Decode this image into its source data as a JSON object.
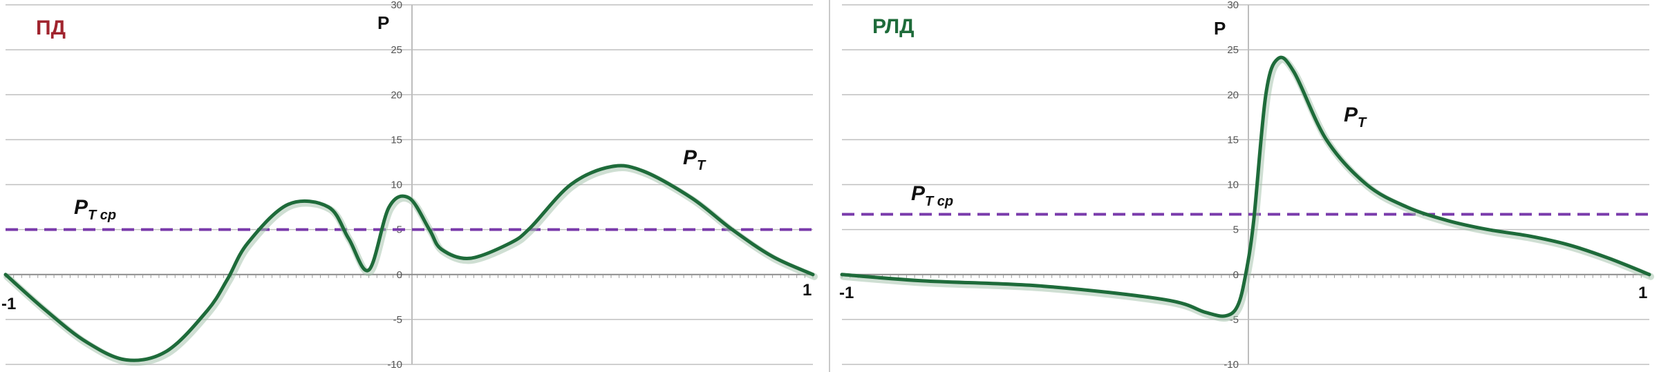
{
  "chart_data": [
    {
      "type": "line",
      "title": "ПД",
      "ylabel": "P",
      "ylim": [
        -10,
        30
      ],
      "yticks": [
        "-10",
        "-5",
        "0",
        "5",
        "10",
        "15",
        "20",
        "25",
        "30"
      ],
      "x_start_label": "-1",
      "x_end_label": "1",
      "grid": true,
      "colors": {
        "title": "#a0242e",
        "curve": "#1e6b3a",
        "dashed": "#7a3bab",
        "grid": "#bfbfbf"
      },
      "series": [
        {
          "name": "P_T",
          "x": [
            -1,
            -0.9,
            -0.8,
            -0.7,
            -0.6,
            -0.5,
            -0.45,
            -0.4,
            -0.3,
            -0.2,
            -0.15,
            -0.1,
            -0.05,
            0,
            0.05,
            0.08,
            0.15,
            0.25,
            0.3,
            0.4,
            0.5,
            0.58,
            0.7,
            0.8,
            0.9,
            1
          ],
          "y": [
            0,
            -4,
            -7.5,
            -9.5,
            -8.5,
            -4,
            -0.5,
            3.5,
            7.8,
            7.5,
            4,
            0.5,
            7.5,
            8.5,
            5,
            2.8,
            1.8,
            3.5,
            5.2,
            10,
            12,
            11.5,
            8.5,
            5,
            2,
            0
          ]
        },
        {
          "name": "P_T cp",
          "style": "dashed",
          "x": [
            -1,
            1
          ],
          "y": [
            5,
            5
          ]
        }
      ],
      "annotations": [
        {
          "main": "P",
          "sub": "T",
          "target": "P_T"
        },
        {
          "main": "P",
          "sub": "T cp",
          "target": "P_T cp"
        }
      ]
    },
    {
      "type": "line",
      "title": "РЛД",
      "ylabel": "P",
      "ylim": [
        -10,
        30
      ],
      "yticks": [
        "-10",
        "-5",
        "0",
        "5",
        "10",
        "15",
        "20",
        "25",
        "30"
      ],
      "x_start_label": "-1",
      "x_end_label": "1",
      "grid": true,
      "colors": {
        "title": "#1e6b3a",
        "curve": "#1e6b3a",
        "dashed": "#7a3bab",
        "grid": "#bfbfbf"
      },
      "series": [
        {
          "name": "P_T",
          "x": [
            -1,
            -0.8,
            -0.5,
            -0.2,
            -0.1,
            -0.05,
            -0.02,
            0,
            0.02,
            0.05,
            0.08,
            0.12,
            0.2,
            0.3,
            0.4,
            0.5,
            0.6,
            0.7,
            0.8,
            0.9,
            1
          ],
          "y": [
            0,
            -0.7,
            -1.3,
            -2.8,
            -4.2,
            -4.6,
            -3.5,
            0,
            6,
            20,
            24,
            22.5,
            15,
            10,
            7.5,
            6,
            5,
            4.3,
            3.3,
            1.8,
            0
          ]
        },
        {
          "name": "P_T cp",
          "style": "dashed",
          "x": [
            -1,
            1
          ],
          "y": [
            6.7,
            6.7
          ]
        }
      ],
      "annotations": [
        {
          "main": "P",
          "sub": "T",
          "target": "P_T"
        },
        {
          "main": "P",
          "sub": "T cp",
          "target": "P_T cp"
        }
      ]
    }
  ]
}
